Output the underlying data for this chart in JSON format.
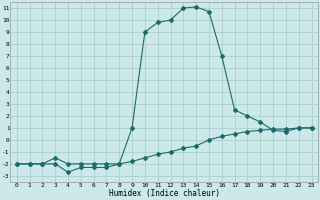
{
  "xlabel": "Humidex (Indice chaleur)",
  "bg_color": "#cce8e8",
  "grid_color": "#aad0d0",
  "line_color": "#1a6b6b",
  "xlim": [
    -0.5,
    23.5
  ],
  "ylim": [
    -3.5,
    11.5
  ],
  "xticks": [
    0,
    1,
    2,
    3,
    4,
    5,
    6,
    7,
    8,
    9,
    10,
    11,
    12,
    13,
    14,
    15,
    16,
    17,
    18,
    19,
    20,
    21,
    22,
    23
  ],
  "yticks": [
    -3,
    -2,
    -1,
    0,
    1,
    2,
    3,
    4,
    5,
    6,
    7,
    8,
    9,
    10,
    11
  ],
  "line1_x": [
    0,
    1,
    2,
    3,
    4,
    5,
    6,
    7,
    8,
    9,
    10,
    11,
    12,
    13,
    14,
    15,
    16,
    17,
    18,
    19,
    20,
    21,
    22,
    23
  ],
  "line1_y": [
    -2,
    -2,
    -2,
    -2,
    -2.7,
    -2.3,
    -2.3,
    -2.3,
    -2,
    -1.8,
    -1.5,
    -1.2,
    -1,
    -0.7,
    -0.5,
    0,
    0.3,
    0.5,
    0.7,
    0.8,
    0.9,
    0.9,
    1.0,
    1.0
  ],
  "line2_x": [
    0,
    1,
    2,
    3,
    4,
    5,
    6,
    7,
    8,
    9,
    10,
    11,
    12,
    13,
    14,
    15,
    16,
    17,
    18,
    19,
    20,
    21,
    22,
    23
  ],
  "line2_y": [
    -2,
    -2,
    -2,
    -1.5,
    -2,
    -2,
    -2,
    -2,
    -2,
    1,
    9.0,
    9.8,
    10.0,
    11.0,
    11.1,
    10.7,
    7.0,
    2.5,
    2.0,
    1.5,
    0.8,
    0.7,
    1.0,
    1.0
  ]
}
